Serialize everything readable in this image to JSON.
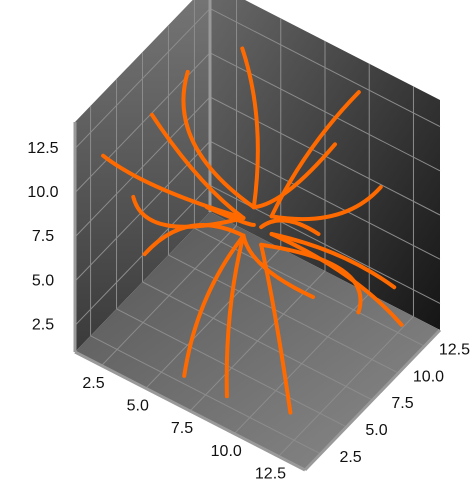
{
  "chart_data": {
    "type": "streamline3d",
    "color": "#ff6a00",
    "xlim": [
      1,
      14
    ],
    "ylim": [
      1,
      14
    ],
    "zlim": [
      1,
      14
    ],
    "xticks": [
      2.5,
      {
        "value": 5,
        "label": "5.0"
      },
      7.5,
      {
        "value": 10,
        "label": "10.0"
      },
      12.5
    ],
    "yticks": [
      2.5,
      {
        "value": 5,
        "label": "5.0"
      },
      7.5,
      {
        "value": 10,
        "label": "10.0"
      },
      12.5
    ],
    "zticks": [
      2.5,
      {
        "value": 5,
        "label": "5.0"
      },
      7.5,
      {
        "value": 10,
        "label": "10.0"
      },
      12.5
    ],
    "grid": true,
    "lines": [
      {
        "x": [
          7,
          5,
          3
        ],
        "y": [
          7,
          6,
          5
        ],
        "z": [
          8,
          10,
          13
        ]
      },
      {
        "x": [
          7,
          9,
          11
        ],
        "y": [
          8,
          8,
          9
        ],
        "z": [
          8,
          10,
          13
        ]
      },
      {
        "x": [
          8,
          10,
          12
        ],
        "y": [
          7,
          5,
          3
        ],
        "z": [
          7,
          5,
          2
        ]
      },
      {
        "x": [
          7,
          5,
          2
        ],
        "y": [
          8,
          10,
          12
        ],
        "z": [
          7,
          5,
          3
        ]
      },
      {
        "x": [
          7,
          4,
          2
        ],
        "y": [
          7,
          7,
          6
        ],
        "z": [
          7,
          6,
          4
        ]
      },
      {
        "x": [
          8,
          11,
          13
        ],
        "y": [
          8,
          9,
          10
        ],
        "z": [
          8,
          9,
          11
        ]
      },
      {
        "x": [
          7,
          6,
          6
        ],
        "y": [
          7,
          5,
          3
        ],
        "z": [
          7,
          4,
          1
        ]
      },
      {
        "x": [
          8,
          9,
          10
        ],
        "y": [
          8,
          10,
          13
        ],
        "z": [
          8,
          11,
          13
        ]
      },
      {
        "x": [
          7,
          6,
          4
        ],
        "y": [
          8,
          10,
          12
        ],
        "z": [
          8,
          11,
          13
        ]
      },
      {
        "x": [
          8,
          10,
          13
        ],
        "y": [
          7,
          6,
          4
        ],
        "z": [
          8,
          10,
          12
        ]
      },
      {
        "x": [
          7,
          8,
          9
        ],
        "y": [
          7,
          4,
          2
        ],
        "z": [
          7,
          5,
          2
        ]
      },
      {
        "x": [
          8,
          11,
          13
        ],
        "y": [
          8,
          10,
          12
        ],
        "z": [
          7,
          5,
          2
        ]
      },
      {
        "x": [
          7,
          4,
          2
        ],
        "y": [
          7,
          4,
          2
        ],
        "z": [
          8,
          10,
          12
        ]
      },
      {
        "x": [
          7,
          3,
          1.5
        ],
        "y": [
          8,
          9,
          11
        ],
        "z": [
          8,
          9,
          11
        ]
      },
      {
        "x": [
          8,
          10,
          12
        ],
        "y": [
          8,
          11,
          13
        ],
        "z": [
          7,
          5,
          3
        ]
      },
      {
        "x": [
          7,
          7,
          8
        ],
        "y": [
          7,
          9,
          12
        ],
        "z": [
          7,
          4,
          1
        ]
      },
      {
        "x": [
          8,
          12,
          13.5
        ],
        "y": [
          7,
          8,
          7
        ],
        "z": [
          7,
          7,
          6
        ]
      },
      {
        "x": [
          7,
          5,
          4
        ],
        "y": [
          7,
          3,
          1.5
        ],
        "z": [
          8,
          9,
          11
        ]
      }
    ]
  }
}
